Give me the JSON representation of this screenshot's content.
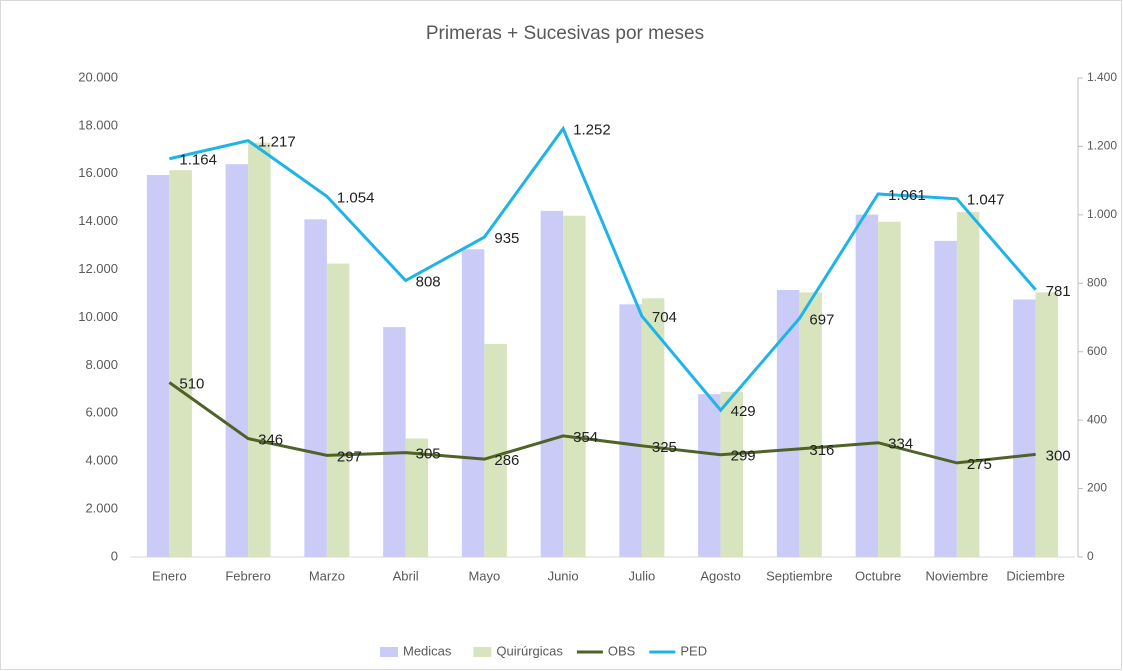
{
  "chart_data": {
    "type": "bar",
    "title": "Primeras + Sucesivas por meses",
    "categories": [
      "Enero",
      "Febrero",
      "Marzo",
      "Abril",
      "Mayo",
      "Junio",
      "Julio",
      "Agosto",
      "Septiembre",
      "Octubre",
      "Noviembre",
      "Diciembre"
    ],
    "series": [
      {
        "name": "Medicas",
        "type": "bar",
        "color": "#cbcbf8",
        "values": [
          15950,
          16400,
          14100,
          9600,
          12850,
          14450,
          10550,
          6800,
          11150,
          14300,
          13200,
          10750
        ]
      },
      {
        "name": "Quirúrgicas",
        "type": "bar",
        "color": "#d7e4bd",
        "values": [
          16150,
          17300,
          12250,
          4950,
          8900,
          14250,
          10800,
          6900,
          11050,
          14000,
          14400,
          11050
        ]
      },
      {
        "name": "OBS",
        "type": "line",
        "axis": "y2",
        "color": "#4f6228",
        "values": [
          510,
          346,
          297,
          305,
          286,
          354,
          325,
          299,
          316,
          334,
          275,
          300
        ],
        "value_labels": [
          "510",
          "346",
          "297",
          "305",
          "286",
          "354",
          "325",
          "299",
          "316",
          "334",
          "275",
          "300"
        ]
      },
      {
        "name": "PED",
        "type": "line",
        "axis": "y2",
        "color": "#1eb4e8",
        "values": [
          1164,
          1217,
          1054,
          808,
          935,
          1252,
          704,
          429,
          697,
          1061,
          1047,
          781
        ],
        "value_labels": [
          "1.164",
          "1.217",
          "1.054",
          "808",
          "935",
          "1.252",
          "704",
          "429",
          "697",
          "1.061",
          "1.047",
          "781"
        ]
      }
    ],
    "ylim": [
      0,
      20000
    ],
    "yticks": [
      0,
      {
        "value": 2000,
        "label": "2.000"
      },
      {
        "value": 4000,
        "label": "4.000"
      },
      {
        "value": 6000,
        "label": "6.000"
      },
      {
        "value": 8000,
        "label": "8.000"
      },
      {
        "value": 10000,
        "label": "10.000"
      },
      {
        "value": 12000,
        "label": "12.000"
      },
      {
        "value": 14000,
        "label": "14.000"
      },
      {
        "value": 16000,
        "label": "16.000"
      },
      {
        "value": 18000,
        "label": "18.000"
      },
      {
        "value": 20000,
        "label": "20.000"
      }
    ],
    "y2lim": [
      0,
      1400
    ],
    "y2ticks": [
      0,
      200,
      400,
      600,
      800,
      {
        "value": 1000,
        "label": "1.000"
      },
      {
        "value": 1200,
        "label": "1.200"
      },
      {
        "value": 1400,
        "label": "1.400"
      }
    ],
    "legend": "bottom"
  }
}
